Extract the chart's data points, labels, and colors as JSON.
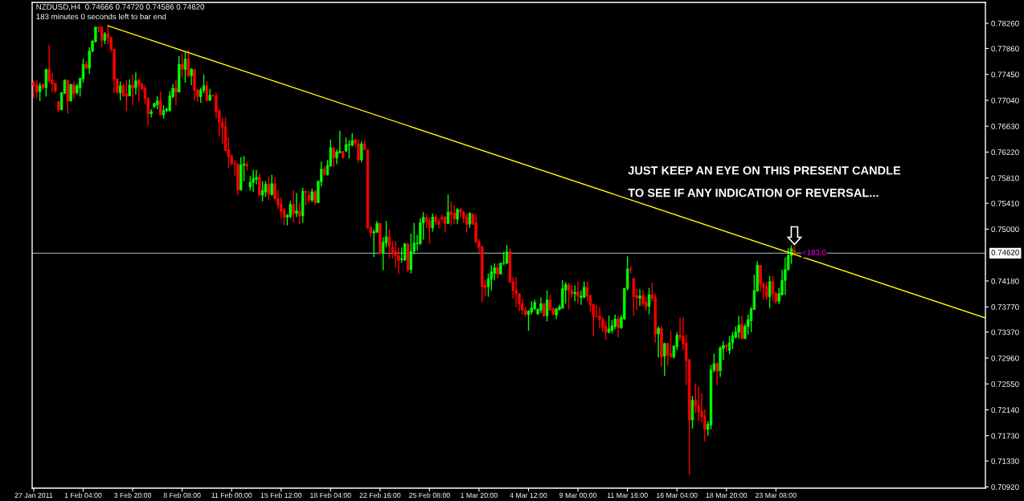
{
  "chart_data": {
    "type": "candlestick",
    "title": "NZDUSD,H4  0.74666 0.74720 0.74586 0.74620",
    "subtitle": "183 minutes 0 seconds left to bar end",
    "colors": [
      "#ff0000",
      "#ff0000",
      "#00ff00",
      "#ff0000",
      "#00ff00",
      "#ff0000",
      "#ff0000",
      "#ff0000",
      "#ff0000",
      "#00ff00",
      "#00ff00",
      "#ff0000",
      "#00ff00",
      "#ff0000",
      "#00ff00",
      "#00ff00",
      "#00ff00",
      "#ff0000",
      "#00ff00",
      "#00ff00",
      "#00ff00",
      "#ff0000",
      "#ff0000",
      "#00ff00",
      "#ff0000",
      "#ff0000",
      "#ff0000",
      "#ff0000",
      "#00ff00",
      "#ff0000",
      "#ff0000",
      "#00ff00",
      "#ff0000",
      "#00ff00",
      "#ff0000",
      "#ff0000",
      "#ff0000",
      "#ff0000",
      "#00ff00",
      "#00ff00",
      "#00ff00",
      "#ff0000",
      "#00ff00",
      "#00ff00",
      "#00ff00",
      "#00ff00",
      "#ff0000",
      "#00ff00",
      "#ff0000",
      "#00ff00",
      "#ff0000",
      "#00ff00",
      "#ff0000",
      "#ff0000",
      "#00ff00",
      "#00ff00",
      "#ff0000",
      "#00ff00",
      "#ff0000",
      "#ff0000",
      "#ff0000",
      "#ff0000",
      "#ff0000",
      "#ff0000",
      "#ff0000",
      "#ff0000",
      "#ff0000",
      "#00ff00",
      "#00ff00",
      "#ff0000",
      "#00ff00",
      "#00ff00",
      "#00ff00",
      "#ff0000",
      "#00ff00",
      "#00ff00",
      "#ff0000",
      "#00ff00",
      "#ff0000",
      "#ff0000",
      "#ff0000",
      "#ff0000",
      "#00ff00",
      "#00ff00",
      "#ff0000",
      "#00ff00",
      "#ff0000",
      "#00ff00",
      "#ff0000",
      "#ff0000",
      "#00ff00",
      "#ff0000",
      "#00ff00",
      "#00ff00",
      "#ff0000",
      "#00ff00",
      "#00ff00",
      "#ff0000",
      "#00ff00",
      "#00ff00",
      "#ff0000",
      "#00ff00",
      "#00ff00",
      "#00ff00",
      "#ff0000",
      "#ff0000",
      "#00ff00",
      "#ff0000",
      "#ff0000",
      "#ff0000",
      "#00ff00",
      "#00ff00",
      "#ff0000",
      "#00ff00",
      "#00ff00",
      "#ff0000",
      "#ff0000",
      "#ff0000",
      "#ff0000",
      "#00ff00",
      "#00ff00",
      "#ff0000",
      "#00ff00",
      "#00ff00",
      "#00ff00",
      "#00ff00",
      "#00ff00",
      "#ff0000",
      "#ff0000",
      "#00ff00",
      "#ff0000",
      "#ff0000",
      "#ff0000",
      "#ff0000",
      "#00ff00",
      "#ff0000",
      "#ff0000",
      "#00ff00",
      "#ff0000",
      "#ff0000",
      "#ff0000",
      "#00ff00",
      "#ff0000",
      "#ff0000",
      "#ff0000",
      "#ff0000",
      "#ff0000",
      "#00ff00",
      "#00ff00",
      "#00ff00",
      "#ff0000",
      "#00ff00",
      "#00ff00",
      "#00ff00",
      "#ff0000",
      "#ff0000",
      "#ff0000",
      "#ff0000",
      "#ff0000",
      "#ff0000",
      "#00ff00",
      "#00ff00",
      "#00ff00",
      "#00ff00",
      "#00ff00",
      "#ff0000",
      "#00ff00",
      "#ff0000",
      "#ff0000",
      "#00ff00",
      "#00ff00",
      "#00ff00",
      "#00ff00",
      "#ff0000",
      "#ff0000",
      "#00ff00",
      "#ff0000",
      "#00ff00",
      "#00ff00",
      "#ff0000",
      "#ff0000",
      "#ff0000",
      "#ff0000",
      "#ff0000",
      "#ff0000",
      "#ff0000",
      "#00ff00",
      "#00ff00",
      "#00ff00",
      "#ff0000",
      "#00ff00",
      "#00ff00",
      "#00ff00",
      "#ff0000",
      "#ff0000",
      "#ff0000",
      "#00ff00",
      "#ff0000",
      "#ff0000",
      "#00ff00",
      "#ff0000",
      "#ff0000",
      "#00ff00",
      "#ff0000",
      "#00ff00",
      "#ff0000",
      "#ff0000",
      "#00ff00",
      "#00ff00",
      "#ff0000",
      "#ff0000",
      "#ff0000",
      "#ff0000",
      "#00ff00",
      "#ff0000",
      "#ff0000",
      "#ff0000",
      "#ff0000",
      "#00ff00",
      "#00ff00",
      "#00ff00",
      "#ff0000",
      "#00ff00",
      "#00ff00",
      "#ff0000",
      "#00ff00",
      "#00ff00",
      "#00ff00",
      "#00ff00",
      "#ff0000",
      "#00ff00",
      "#00ff00",
      "#00ff00",
      "#00ff00",
      "#00ff00",
      "#ff0000",
      "#ff0000",
      "#ff0000",
      "#00ff00",
      "#ff0000",
      "#ff0000",
      "#00ff00",
      "#00ff00",
      "#00ff00",
      "#00ff00",
      "#00ff00",
      "#ff0000",
      null,
      null,
      null,
      null,
      null,
      null,
      null,
      null,
      null,
      null,
      null,
      null,
      null,
      null,
      null,
      null,
      null,
      null,
      null,
      null,
      null,
      null,
      null,
      null,
      null,
      null,
      null,
      null,
      null,
      null,
      null,
      null,
      null,
      null,
      null,
      null,
      null,
      null,
      null,
      null,
      null,
      null,
      null,
      null,
      null,
      null,
      null,
      null,
      null,
      null,
      null,
      null,
      null,
      null,
      null,
      null,
      null,
      null,
      null,
      null,
      null,
      null
    ],
    "categories": [
      "27 Jan 2011",
      null,
      null,
      null,
      null,
      null,
      null,
      null,
      null,
      null,
      null,
      null,
      null,
      null,
      null,
      null,
      "1 Feb 04:00",
      null,
      null,
      null,
      null,
      null,
      null,
      null,
      null,
      null,
      null,
      null,
      null,
      null,
      null,
      null,
      "3 Feb 20:00",
      null,
      null,
      null,
      null,
      null,
      null,
      null,
      null,
      null,
      null,
      null,
      null,
      null,
      null,
      null,
      "8 Feb 08:00",
      null,
      null,
      null,
      null,
      null,
      null,
      null,
      null,
      null,
      null,
      null,
      null,
      null,
      null,
      null,
      "11 Feb 00:00",
      null,
      null,
      null,
      null,
      null,
      null,
      null,
      null,
      null,
      null,
      null,
      null,
      null,
      null,
      null,
      "15 Feb 12:00",
      null,
      null,
      null,
      null,
      null,
      null,
      null,
      null,
      null,
      null,
      null,
      null,
      null,
      null,
      null,
      "18 Feb 04:00",
      null,
      null,
      null,
      null,
      null,
      null,
      null,
      null,
      null,
      null,
      null,
      null,
      null,
      null,
      null,
      "22 Feb 16:00",
      null,
      null,
      null,
      null,
      null,
      null,
      null,
      null,
      null,
      null,
      null,
      null,
      null,
      null,
      null,
      "25 Feb 08:00",
      null,
      null,
      null,
      null,
      null,
      null,
      null,
      null,
      null,
      null,
      null,
      null,
      null,
      null,
      null,
      "1 Mar 20:00",
      null,
      null,
      null,
      null,
      null,
      null,
      null,
      null,
      null,
      null,
      null,
      null,
      null,
      null,
      null,
      "4 Mar 12:00",
      null,
      null,
      null,
      null,
      null,
      null,
      null,
      null,
      null,
      null,
      null,
      null,
      null,
      null,
      null,
      "9 Mar 00:00",
      null,
      null,
      null,
      null,
      null,
      null,
      null,
      null,
      null,
      null,
      null,
      null,
      null,
      null,
      null,
      "11 Mar 16:00",
      null,
      null,
      null,
      null,
      null,
      null,
      null,
      null,
      null,
      null,
      null,
      null,
      null,
      null,
      null,
      "16 Mar 04:00",
      null,
      null,
      null,
      null,
      null,
      null,
      null,
      null,
      null,
      null,
      null,
      null,
      null,
      null,
      null,
      "18 Mar 20:00",
      null,
      null,
      null,
      null,
      null,
      null,
      null,
      null,
      null,
      null,
      null,
      null,
      null,
      null,
      null,
      "23 Mar 08:00",
      null,
      null,
      null,
      null,
      null,
      null,
      null,
      null,
      null,
      null,
      null,
      null,
      null,
      null,
      null,
      null,
      null,
      null,
      null,
      null,
      null,
      null,
      null,
      null,
      null,
      null,
      null,
      null,
      null,
      null,
      null,
      null,
      null,
      null,
      null,
      null,
      null,
      null,
      null,
      null,
      null,
      null,
      null,
      null,
      null,
      null,
      null,
      null,
      null,
      null,
      null,
      null,
      null,
      null,
      null,
      null,
      null,
      null,
      null,
      null,
      null,
      null,
      null,
      null,
      null,
      null,
      null,
      null
    ],
    "ohlc": [
      [
        0.7732,
        0.7735,
        0.7707,
        0.7728
      ],
      [
        0.7729,
        0.7736,
        0.7707,
        0.7717
      ],
      [
        0.7718,
        0.7732,
        0.7703,
        0.7727
      ],
      [
        0.7729,
        0.773,
        0.7721,
        0.7724
      ],
      [
        0.7724,
        0.7754,
        0.771,
        0.7753
      ],
      [
        0.7753,
        0.7792,
        0.7732,
        0.7735
      ],
      [
        0.7736,
        0.7747,
        0.7717,
        0.773
      ],
      [
        0.7731,
        0.7732,
        0.7715,
        0.7719
      ],
      [
        0.7702,
        0.7703,
        0.7685,
        0.7689
      ],
      [
        0.7689,
        0.7717,
        0.7688,
        0.7716
      ],
      [
        0.7715,
        0.7737,
        0.7714,
        0.7736
      ],
      [
        0.7735,
        0.7737,
        0.7683,
        0.7703
      ],
      [
        0.7703,
        0.773,
        0.7702,
        0.7729
      ],
      [
        0.7729,
        0.7734,
        0.7707,
        0.7715
      ],
      [
        0.7716,
        0.773,
        0.7713,
        0.7727
      ],
      [
        0.7724,
        0.7739,
        0.771,
        0.7739
      ],
      [
        0.7738,
        0.777,
        0.7732,
        0.7761
      ],
      [
        0.7761,
        0.7766,
        0.7753,
        0.7755
      ],
      [
        0.7755,
        0.7788,
        0.7746,
        0.7782
      ],
      [
        0.7782,
        0.7799,
        0.778,
        0.7798
      ],
      [
        0.7797,
        0.7821,
        0.7795,
        0.782
      ],
      [
        0.782,
        0.7821,
        0.7812,
        0.7818
      ],
      [
        0.782,
        0.7821,
        0.7788,
        0.7799
      ],
      [
        0.7799,
        0.7812,
        0.7793,
        0.7809
      ],
      [
        0.7809,
        0.7823,
        0.7793,
        0.7804
      ],
      [
        0.7804,
        0.7804,
        0.778,
        0.7785
      ],
      [
        0.7785,
        0.7785,
        0.7715,
        0.7737
      ],
      [
        0.7738,
        0.7738,
        0.7713,
        0.7717
      ],
      [
        0.7716,
        0.7734,
        0.7704,
        0.7727
      ],
      [
        0.7727,
        0.773,
        0.771,
        0.7711
      ],
      [
        0.7714,
        0.7736,
        0.7687,
        0.7711
      ],
      [
        0.7711,
        0.7737,
        0.7711,
        0.7728
      ],
      [
        0.7728,
        0.7745,
        0.7696,
        0.7724
      ],
      [
        0.7724,
        0.7748,
        0.7713,
        0.7735
      ],
      [
        0.7735,
        0.7739,
        0.7702,
        0.7729
      ],
      [
        0.773,
        0.7732,
        0.7721,
        0.7722
      ],
      [
        0.7723,
        0.7728,
        0.7698,
        0.7707
      ],
      [
        0.7707,
        0.7709,
        0.7664,
        0.7683
      ],
      [
        0.7683,
        0.769,
        0.7677,
        0.7686
      ],
      [
        0.7694,
        0.77,
        0.7692,
        0.7699
      ],
      [
        0.7697,
        0.7711,
        0.769,
        0.7703
      ],
      [
        0.7703,
        0.7718,
        0.768,
        0.7681
      ],
      [
        0.7681,
        0.7696,
        0.7675,
        0.7688
      ],
      [
        0.7688,
        0.7692,
        0.7685,
        0.769
      ],
      [
        0.7688,
        0.7719,
        0.7686,
        0.7711
      ],
      [
        0.771,
        0.773,
        0.7707,
        0.7723
      ],
      [
        0.7723,
        0.7737,
        0.7696,
        0.7717
      ],
      [
        0.7717,
        0.7774,
        0.7717,
        0.7761
      ],
      [
        0.7761,
        0.7778,
        0.774,
        0.7753
      ],
      [
        0.7753,
        0.778,
        0.7732,
        0.7769
      ],
      [
        0.777,
        0.7784,
        0.774,
        0.7743
      ],
      [
        0.7743,
        0.7755,
        0.7728,
        0.7753
      ],
      [
        0.7753,
        0.7753,
        0.7704,
        0.772
      ],
      [
        0.7721,
        0.7721,
        0.7702,
        0.771
      ],
      [
        0.771,
        0.7724,
        0.77,
        0.772
      ],
      [
        0.772,
        0.7745,
        0.7715,
        0.7727
      ],
      [
        0.7727,
        0.7734,
        0.7702,
        0.7704
      ],
      [
        0.7704,
        0.7722,
        0.7703,
        0.7712
      ],
      [
        0.7712,
        0.7713,
        0.771,
        0.7711
      ],
      [
        0.7711,
        0.7716,
        0.7675,
        0.7686
      ],
      [
        0.7687,
        0.769,
        0.7647,
        0.7669
      ],
      [
        0.7669,
        0.7677,
        0.7635,
        0.7661
      ],
      [
        0.7662,
        0.7677,
        0.7624,
        0.7624
      ],
      [
        0.7626,
        0.7645,
        0.7597,
        0.7615
      ],
      [
        0.7616,
        0.7618,
        0.7601,
        0.7604
      ],
      [
        0.7604,
        0.7609,
        0.7584,
        0.7603
      ],
      [
        0.7603,
        0.7603,
        0.7554,
        0.7562
      ],
      [
        0.7562,
        0.7614,
        0.7561,
        0.7602
      ],
      [
        0.7601,
        0.7616,
        0.7576,
        0.7603
      ],
      [
        0.7603,
        0.7607,
        0.7593,
        0.76
      ],
      [
        0.7567,
        0.7584,
        0.7561,
        0.7574
      ],
      [
        0.7574,
        0.7594,
        0.7559,
        0.758
      ],
      [
        0.7579,
        0.7594,
        0.7571,
        0.7582
      ],
      [
        0.7582,
        0.7588,
        0.7552,
        0.7554
      ],
      [
        0.7554,
        0.7576,
        0.7544,
        0.7561
      ],
      [
        0.7559,
        0.7576,
        0.7551,
        0.7571
      ],
      [
        0.7571,
        0.7584,
        0.7546,
        0.7555
      ],
      [
        0.7555,
        0.7586,
        0.7553,
        0.7572
      ],
      [
        0.7572,
        0.7582,
        0.7547,
        0.7548
      ],
      [
        0.7548,
        0.7562,
        0.7531,
        0.7539
      ],
      [
        0.754,
        0.7551,
        0.7517,
        0.7528
      ],
      [
        0.753,
        0.7534,
        0.7506,
        0.7519
      ],
      [
        0.7519,
        0.7524,
        0.7506,
        0.7522
      ],
      [
        0.752,
        0.7545,
        0.7517,
        0.7539
      ],
      [
        0.7539,
        0.7562,
        0.751,
        0.7525
      ],
      [
        0.7525,
        0.7557,
        0.7519,
        0.7529
      ],
      [
        0.7528,
        0.7542,
        0.7508,
        0.7521
      ],
      [
        0.7521,
        0.7566,
        0.751,
        0.756
      ],
      [
        0.756,
        0.7561,
        0.7538,
        0.7558
      ],
      [
        0.7554,
        0.7561,
        0.7542,
        0.7546
      ],
      [
        0.7546,
        0.7564,
        0.7543,
        0.7559
      ],
      [
        0.756,
        0.7562,
        0.7538,
        0.7542
      ],
      [
        0.7542,
        0.7577,
        0.7542,
        0.7576
      ],
      [
        0.7575,
        0.7607,
        0.7568,
        0.7595
      ],
      [
        0.7595,
        0.7599,
        0.7584,
        0.7588
      ],
      [
        0.7586,
        0.761,
        0.7585,
        0.7601
      ],
      [
        0.76,
        0.7642,
        0.7599,
        0.7629
      ],
      [
        0.7629,
        0.763,
        0.7598,
        0.7613
      ],
      [
        0.7613,
        0.7626,
        0.7603,
        0.7622
      ],
      [
        0.7621,
        0.7656,
        0.762,
        0.7623
      ],
      [
        0.7623,
        0.7624,
        0.7612,
        0.7613
      ],
      [
        0.7624,
        0.7645,
        0.7622,
        0.7634
      ],
      [
        0.7633,
        0.7641,
        0.7612,
        0.7634
      ],
      [
        0.7633,
        0.7652,
        0.7631,
        0.764
      ],
      [
        0.7642,
        0.7642,
        0.7631,
        0.7636
      ],
      [
        0.7635,
        0.7642,
        0.7605,
        0.761
      ],
      [
        0.761,
        0.7639,
        0.7606,
        0.7635
      ],
      [
        0.7635,
        0.7641,
        0.7625,
        0.7626
      ],
      [
        0.7626,
        0.7626,
        0.75,
        0.7502
      ],
      [
        0.7503,
        0.7504,
        0.7487,
        0.7494
      ],
      [
        0.7494,
        0.75,
        0.7456,
        0.7496
      ],
      [
        0.7495,
        0.7513,
        0.7494,
        0.7509
      ],
      [
        0.7509,
        0.751,
        0.7462,
        0.7462
      ],
      [
        0.7462,
        0.7487,
        0.7435,
        0.7479
      ],
      [
        0.7478,
        0.7513,
        0.7471,
        0.7488
      ],
      [
        0.7488,
        0.75,
        0.7454,
        0.7473
      ],
      [
        0.7471,
        0.7481,
        0.7454,
        0.7464
      ],
      [
        0.7465,
        0.7481,
        0.7439,
        0.7458
      ],
      [
        0.7458,
        0.7471,
        0.7429,
        0.745
      ],
      [
        0.7452,
        0.7471,
        0.7447,
        0.7453
      ],
      [
        0.7451,
        0.7478,
        0.745,
        0.7477
      ],
      [
        0.7477,
        0.7477,
        0.7432,
        0.7436
      ],
      [
        0.7436,
        0.7493,
        0.743,
        0.7465
      ],
      [
        0.7465,
        0.751,
        0.746,
        0.7478
      ],
      [
        0.7477,
        0.7491,
        0.7466,
        0.7478
      ],
      [
        0.7477,
        0.7517,
        0.7475,
        0.751
      ],
      [
        0.751,
        0.7527,
        0.7483,
        0.7519
      ],
      [
        0.7518,
        0.7524,
        0.7502,
        0.7513
      ],
      [
        0.7513,
        0.7519,
        0.7477,
        0.7502
      ],
      [
        0.7502,
        0.7525,
        0.7496,
        0.7519
      ],
      [
        0.7519,
        0.7523,
        0.7506,
        0.7512
      ],
      [
        0.7512,
        0.7516,
        0.7501,
        0.7508
      ],
      [
        0.7519,
        0.7523,
        0.7512,
        0.7516
      ],
      [
        0.7519,
        0.7521,
        0.7496,
        0.7509
      ],
      [
        0.7509,
        0.7555,
        0.7508,
        0.7527
      ],
      [
        0.7527,
        0.7544,
        0.7506,
        0.7523
      ],
      [
        0.7525,
        0.7538,
        0.7508,
        0.7516
      ],
      [
        0.7516,
        0.7534,
        0.7508,
        0.7531
      ],
      [
        0.7531,
        0.7534,
        0.7519,
        0.7527
      ],
      [
        0.7527,
        0.7529,
        0.751,
        0.7518
      ],
      [
        0.7519,
        0.7525,
        0.7495,
        0.7508
      ],
      [
        0.7508,
        0.7527,
        0.7502,
        0.7525
      ],
      [
        0.7524,
        0.7525,
        0.7507,
        0.7508
      ],
      [
        0.751,
        0.7523,
        0.7478,
        0.748
      ],
      [
        0.748,
        0.7484,
        0.7462,
        0.7471
      ],
      [
        0.7472,
        0.7474,
        0.7384,
        0.7409
      ],
      [
        0.7411,
        0.742,
        0.7394,
        0.7407
      ],
      [
        0.7409,
        0.743,
        0.7393,
        0.7421
      ],
      [
        0.7421,
        0.7443,
        0.7403,
        0.7432
      ],
      [
        0.743,
        0.7446,
        0.7419,
        0.7439
      ],
      [
        0.7439,
        0.7445,
        0.7422,
        0.7429
      ],
      [
        0.7429,
        0.7447,
        0.7428,
        0.7446
      ],
      [
        0.7446,
        0.7464,
        0.7443,
        0.7447
      ],
      [
        0.7446,
        0.7475,
        0.7445,
        0.7464
      ],
      [
        0.7464,
        0.747,
        0.7416,
        0.7416
      ],
      [
        0.7417,
        0.7424,
        0.739,
        0.7403
      ],
      [
        0.7403,
        0.7424,
        0.7377,
        0.7398
      ],
      [
        0.7398,
        0.7399,
        0.737,
        0.7382
      ],
      [
        0.7382,
        0.739,
        0.7365,
        0.7372
      ],
      [
        0.7372,
        0.7377,
        0.7361,
        0.7365
      ],
      [
        0.7365,
        0.7372,
        0.7339,
        0.737
      ],
      [
        0.7369,
        0.7386,
        0.7365,
        0.7375
      ],
      [
        0.7374,
        0.7388,
        0.7372,
        0.7384
      ],
      [
        0.7366,
        0.7375,
        0.7364,
        0.7373
      ],
      [
        0.7372,
        0.7392,
        0.7367,
        0.7382
      ],
      [
        0.7382,
        0.7384,
        0.7361,
        0.7363
      ],
      [
        0.7363,
        0.7403,
        0.7354,
        0.7388
      ],
      [
        0.7388,
        0.7396,
        0.7371,
        0.7372
      ],
      [
        0.7374,
        0.7377,
        0.7364,
        0.7365
      ],
      [
        0.7364,
        0.7375,
        0.7358,
        0.7374
      ],
      [
        0.7373,
        0.738,
        0.7371,
        0.7377
      ],
      [
        0.7375,
        0.742,
        0.7374,
        0.7406
      ],
      [
        0.7404,
        0.7416,
        0.7382,
        0.7412
      ],
      [
        0.7412,
        0.7415,
        0.7373,
        0.7403
      ],
      [
        0.7403,
        0.7411,
        0.7392,
        0.7397
      ],
      [
        0.7398,
        0.7411,
        0.7386,
        0.74
      ],
      [
        0.74,
        0.7417,
        0.7382,
        0.7394
      ],
      [
        0.7392,
        0.7403,
        0.738,
        0.7394
      ],
      [
        0.7392,
        0.7417,
        0.7391,
        0.7408
      ],
      [
        0.7408,
        0.7417,
        0.7386,
        0.7394
      ],
      [
        0.7395,
        0.7396,
        0.7369,
        0.738
      ],
      [
        0.7381,
        0.7382,
        0.7331,
        0.7361
      ],
      [
        0.7362,
        0.738,
        0.7361,
        0.7361
      ],
      [
        0.7362,
        0.7377,
        0.7344,
        0.7357
      ],
      [
        0.7357,
        0.7361,
        0.7337,
        0.7344
      ],
      [
        0.7346,
        0.7354,
        0.7325,
        0.7337
      ],
      [
        0.7337,
        0.7363,
        0.7335,
        0.7342
      ],
      [
        0.734,
        0.7356,
        0.7335,
        0.7347
      ],
      [
        0.7346,
        0.7365,
        0.7342,
        0.7358
      ],
      [
        0.7358,
        0.7363,
        0.7329,
        0.7344
      ],
      [
        0.7344,
        0.7364,
        0.7342,
        0.736
      ],
      [
        0.7358,
        0.7407,
        0.7356,
        0.7406
      ],
      [
        0.7406,
        0.7457,
        0.7403,
        0.7437
      ],
      [
        0.7437,
        0.7442,
        0.743,
        0.7436
      ],
      [
        0.7422,
        0.7423,
        0.7363,
        0.7393
      ],
      [
        0.7395,
        0.7405,
        0.7372,
        0.7391
      ],
      [
        0.7391,
        0.7405,
        0.7378,
        0.7394
      ],
      [
        0.7395,
        0.7403,
        0.7378,
        0.7382
      ],
      [
        0.7384,
        0.7393,
        0.7371,
        0.7378
      ],
      [
        0.7378,
        0.7407,
        0.7365,
        0.7396
      ],
      [
        0.7396,
        0.7415,
        0.7386,
        0.7391
      ],
      [
        0.7392,
        0.7398,
        0.732,
        0.7334
      ],
      [
        0.7334,
        0.7346,
        0.7297,
        0.7343
      ],
      [
        0.7343,
        0.7346,
        0.7282,
        0.7298
      ],
      [
        0.7299,
        0.732,
        0.7268,
        0.7319
      ],
      [
        0.7319,
        0.732,
        0.7284,
        0.7301
      ],
      [
        0.7303,
        0.7339,
        0.7297,
        0.7298
      ],
      [
        0.7298,
        0.7316,
        0.7295,
        0.7315
      ],
      [
        0.7314,
        0.7337,
        0.7309,
        0.7332
      ],
      [
        0.7332,
        0.736,
        0.7323,
        0.7329
      ],
      [
        0.733,
        0.736,
        0.7309,
        0.7318
      ],
      [
        0.7319,
        0.7333,
        0.7253,
        0.7292
      ],
      [
        0.7293,
        0.7295,
        0.7111,
        0.7198
      ],
      [
        0.7198,
        0.7236,
        0.7184,
        0.7229
      ],
      [
        0.723,
        0.7256,
        0.7209,
        0.722
      ],
      [
        0.722,
        0.7251,
        0.7196,
        0.7211
      ],
      [
        0.7212,
        0.724,
        0.7194,
        0.7203
      ],
      [
        0.7204,
        0.7215,
        0.7164,
        0.7183
      ],
      [
        0.7183,
        0.7196,
        0.7173,
        0.7191
      ],
      [
        0.719,
        0.7285,
        0.7183,
        0.7277
      ],
      [
        0.7277,
        0.7303,
        0.7273,
        0.7287
      ],
      [
        0.7288,
        0.7289,
        0.7253,
        0.7275
      ],
      [
        0.7276,
        0.7315,
        0.7266,
        0.7312
      ],
      [
        0.7311,
        0.7323,
        0.7293,
        0.7316
      ],
      [
        0.7316,
        0.7318,
        0.7306,
        0.7314
      ],
      [
        0.7308,
        0.7331,
        0.7302,
        0.732
      ],
      [
        0.732,
        0.7337,
        0.731,
        0.7331
      ],
      [
        0.7329,
        0.7346,
        0.7327,
        0.7337
      ],
      [
        0.7337,
        0.7363,
        0.7327,
        0.7348
      ],
      [
        0.735,
        0.7363,
        0.7325,
        0.7327
      ],
      [
        0.7327,
        0.735,
        0.7326,
        0.7346
      ],
      [
        0.7346,
        0.7365,
        0.7333,
        0.7357
      ],
      [
        0.7355,
        0.7377,
        0.7337,
        0.7374
      ],
      [
        0.7373,
        0.7428,
        0.7372,
        0.7403
      ],
      [
        0.7402,
        0.7449,
        0.7401,
        0.7443
      ],
      [
        0.7443,
        0.7443,
        0.7401,
        0.7413
      ],
      [
        0.7413,
        0.7417,
        0.7388,
        0.7408
      ],
      [
        0.7409,
        0.7417,
        0.7388,
        0.7393
      ],
      [
        0.7393,
        0.7426,
        0.7375,
        0.7417
      ],
      [
        0.7417,
        0.7426,
        0.7386,
        0.7398
      ],
      [
        0.7398,
        0.7401,
        0.7382,
        0.7385
      ],
      [
        0.7386,
        0.7407,
        0.7381,
        0.7398
      ],
      [
        0.7396,
        0.7436,
        0.7395,
        0.7419
      ],
      [
        0.7419,
        0.7455,
        0.7396,
        0.7436
      ],
      [
        0.7436,
        0.747,
        0.7434,
        0.7458
      ],
      [
        0.7458,
        0.7474,
        0.7445,
        0.7469
      ],
      [
        0.74666,
        0.7472,
        0.74586,
        0.7462
      ],
      null,
      null,
      null,
      null,
      null,
      null,
      null,
      null,
      null,
      null,
      null,
      null,
      null,
      null,
      null,
      null,
      null,
      null,
      null,
      null,
      null,
      null,
      null,
      null,
      null,
      null,
      null,
      null,
      null,
      null,
      null,
      null,
      null,
      null,
      null,
      null,
      null,
      null,
      null,
      null,
      null,
      null,
      null,
      null,
      null,
      null,
      null,
      null,
      null,
      null,
      null,
      null,
      null,
      null,
      null,
      null,
      null,
      null,
      null,
      null,
      null,
      null
    ],
    "series": [
      {
        "type": "line",
        "color": "#ffff00",
        "values": [
          null,
          null,
          null,
          null,
          null,
          null,
          null,
          null,
          null,
          null,
          null,
          null,
          null,
          null,
          null,
          null,
          null,
          null,
          null,
          null,
          null,
          null,
          null,
          null,
          0.7822,
          null,
          null,
          null,
          null,
          null,
          null,
          null,
          null,
          null,
          null,
          null,
          null,
          null,
          null,
          null,
          null,
          null,
          null,
          null,
          null,
          null,
          null,
          null,
          null,
          null,
          null,
          null,
          null,
          null,
          null,
          null,
          null,
          null,
          null,
          null,
          null,
          null,
          null,
          null,
          null,
          null,
          null,
          null,
          null,
          null,
          null,
          null,
          null,
          null,
          null,
          null,
          null,
          null,
          null,
          null,
          null,
          null,
          null,
          null,
          null,
          null,
          null,
          null,
          null,
          null,
          null,
          null,
          null,
          null,
          null,
          null,
          null,
          null,
          null,
          null,
          null,
          null,
          null,
          null,
          null,
          null,
          null,
          null,
          null,
          null,
          null,
          null,
          null,
          null,
          null,
          null,
          null,
          null,
          null,
          null,
          null,
          null,
          null,
          null,
          null,
          null,
          null,
          null,
          null,
          null,
          null,
          null,
          null,
          null,
          null,
          null,
          null,
          null,
          null,
          null,
          null,
          null,
          null,
          null,
          null,
          null,
          null,
          null,
          null,
          null,
          null,
          null,
          null,
          null,
          null,
          null,
          null,
          null,
          null,
          null,
          null,
          null,
          null,
          null,
          null,
          null,
          null,
          null,
          null,
          null,
          null,
          null,
          null,
          null,
          null,
          null,
          null,
          null,
          null,
          null,
          null,
          null,
          null,
          null,
          null,
          null,
          null,
          null,
          null,
          null,
          null,
          null,
          null,
          null,
          null,
          null,
          null,
          null,
          null,
          null,
          null,
          null,
          null,
          null,
          null,
          null,
          null,
          null,
          null,
          null,
          null,
          null,
          null,
          null,
          null,
          null,
          null,
          null,
          null,
          null,
          null,
          null,
          null,
          null,
          null,
          null,
          null,
          null,
          null,
          null,
          null,
          null,
          null,
          null,
          null,
          null,
          null,
          null,
          null,
          null,
          null,
          null,
          null,
          null,
          null,
          null,
          null,
          null,
          null,
          null,
          null,
          null,
          null,
          null,
          null,
          null,
          null,
          null,
          null,
          null,
          null,
          null,
          null,
          null,
          null,
          null,
          null,
          null,
          null,
          null,
          null,
          null,
          null,
          null,
          null,
          null,
          null,
          null,
          null,
          null,
          null,
          null,
          null,
          null,
          null,
          null,
          null,
          null,
          null,
          null,
          null,
          null,
          null,
          null,
          null,
          null,
          null,
          null,
          null,
          null,
          null,
          null,
          null,
          null,
          null,
          null,
          null,
          null,
          0.7359
        ]
      }
    ],
    "ref_lines": [
      {
        "axis": "y",
        "value": 0.7462,
        "label": "0.74620",
        "color": "#8c96a6"
      }
    ],
    "annotations": [
      "JUST KEEP AN EYE ON THIS PRESENT CANDLE",
      "TO SEE IF ANY INDICATION OF REVERSAL...",
      {
        "text": "<183:0",
        "y": 0.7462
      }
    ],
    "ylim": [
      0.709,
      0.7859
    ],
    "yticks": [
      {
        "value": 0.7826,
        "label": "0.78260"
      },
      {
        "value": 0.7786,
        "label": "0.77860"
      },
      {
        "value": 0.7745,
        "label": "0.77450"
      },
      {
        "value": 0.7704,
        "label": "0.77040"
      },
      {
        "value": 0.7663,
        "label": "0.76630"
      },
      {
        "value": 0.7622,
        "label": "0.76220"
      },
      {
        "value": 0.7581,
        "label": "0.75810"
      },
      {
        "value": 0.7541,
        "label": "0.75410"
      },
      {
        "value": 0.75,
        "label": "0.75000"
      },
      {
        "value": 0.7418,
        "label": "0.74180"
      },
      {
        "value": 0.7377,
        "label": "0.73770"
      },
      {
        "value": 0.7337,
        "label": "0.73370"
      },
      {
        "value": 0.7296,
        "label": "0.72960"
      },
      {
        "value": 0.7255,
        "label": "0.72550"
      },
      {
        "value": 0.7214,
        "label": "0.72140"
      },
      {
        "value": 0.7173,
        "label": "0.71730"
      },
      {
        "value": 0.7133,
        "label": "0.71330"
      },
      {
        "value": 0.7092,
        "label": "0.70920"
      }
    ],
    "grid": false,
    "legend": false
  }
}
